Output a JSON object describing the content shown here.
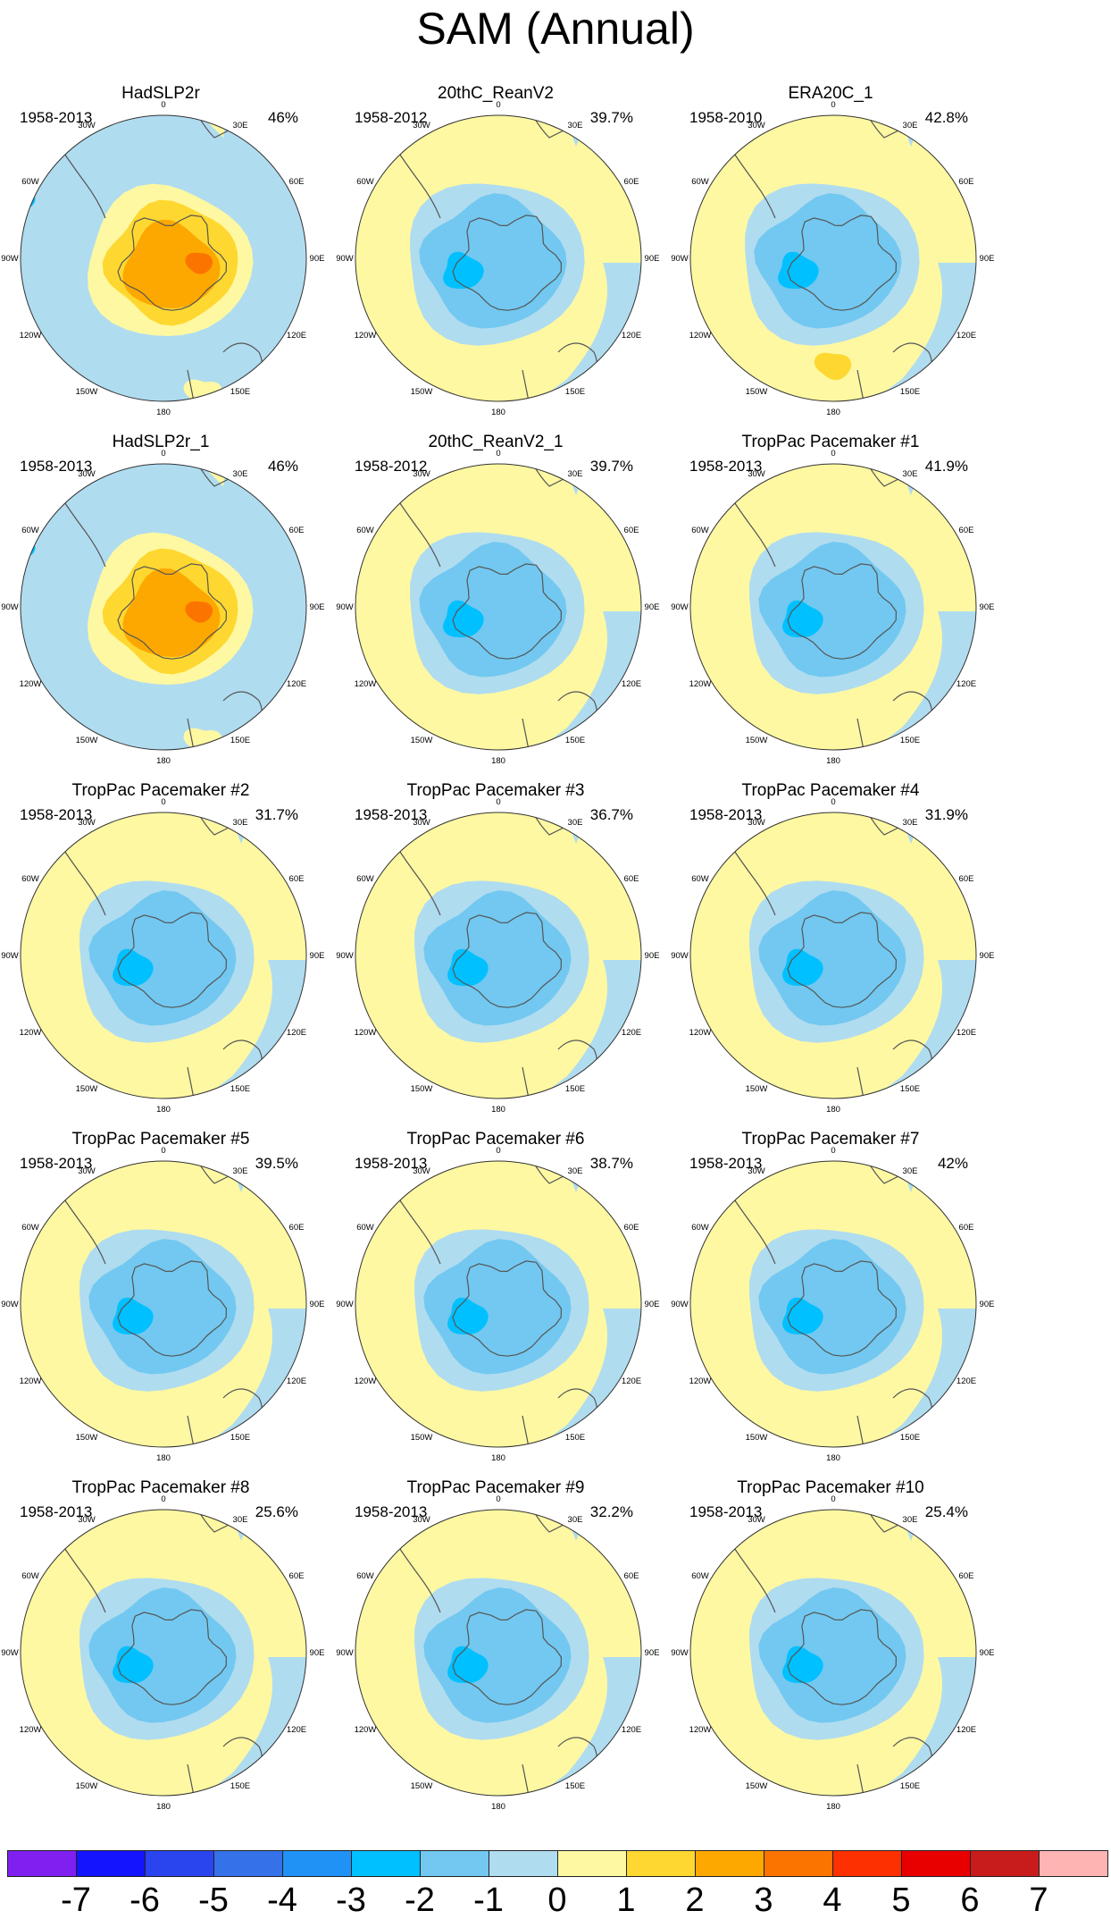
{
  "chart_data": {
    "type": "contour-map-grid",
    "title": "SAM (Annual)",
    "projection": "south-polar-stereographic",
    "longitude_labels": [
      "0",
      "30E",
      "60E",
      "90E",
      "120E",
      "150E",
      "180",
      "150W",
      "120W",
      "90W",
      "60W",
      "30W"
    ],
    "colorbar": {
      "ticks": [
        "-7",
        "-6",
        "-5",
        "-4",
        "-3",
        "-2",
        "-1",
        "0",
        "1",
        "2",
        "3",
        "4",
        "5",
        "6",
        "7"
      ],
      "colors": [
        "#8020F0",
        "#1414FF",
        "#2A45EE",
        "#3571E8",
        "#2092F5",
        "#00C0FF",
        "#72C8F0",
        "#B0DCF0",
        "#FEF8A2",
        "#FED830",
        "#FCA800",
        "#FC7400",
        "#FC3000",
        "#E80000",
        "#C81C1C",
        "#FFB4B4"
      ]
    },
    "panels": [
      {
        "title": "HadSLP2r",
        "years": "1958-2013",
        "percent": "46%",
        "pattern": "had"
      },
      {
        "title": "20thC_ReanV2",
        "years": "1958-2012",
        "percent": "39.7%",
        "pattern": "rean"
      },
      {
        "title": "ERA20C_1",
        "years": "1958-2010",
        "percent": "42.8%",
        "pattern": "era"
      },
      {
        "title": "HadSLP2r_1",
        "years": "1958-2013",
        "percent": "46%",
        "pattern": "had"
      },
      {
        "title": "20thC_ReanV2_1",
        "years": "1958-2012",
        "percent": "39.7%",
        "pattern": "rean"
      },
      {
        "title": "TropPac Pacemaker #1",
        "years": "1958-2013",
        "percent": "41.9%",
        "pattern": "pm"
      },
      {
        "title": "TropPac Pacemaker #2",
        "years": "1958-2013",
        "percent": "31.7%",
        "pattern": "pm"
      },
      {
        "title": "TropPac Pacemaker #3",
        "years": "1958-2013",
        "percent": "36.7%",
        "pattern": "pm"
      },
      {
        "title": "TropPac Pacemaker #4",
        "years": "1958-2013",
        "percent": "31.9%",
        "pattern": "pm"
      },
      {
        "title": "TropPac Pacemaker #5",
        "years": "1958-2013",
        "percent": "39.5%",
        "pattern": "pm"
      },
      {
        "title": "TropPac Pacemaker #6",
        "years": "1958-2013",
        "percent": "38.7%",
        "pattern": "pm"
      },
      {
        "title": "TropPac Pacemaker #7",
        "years": "1958-2013",
        "percent": "42%",
        "pattern": "pm"
      },
      {
        "title": "TropPac Pacemaker #8",
        "years": "1958-2013",
        "percent": "25.6%",
        "pattern": "pm"
      },
      {
        "title": "TropPac Pacemaker #9",
        "years": "1958-2013",
        "percent": "32.2%",
        "pattern": "pm"
      },
      {
        "title": "TropPac Pacemaker #10",
        "years": "1958-2013",
        "percent": "25.4%",
        "pattern": "pm"
      }
    ]
  }
}
